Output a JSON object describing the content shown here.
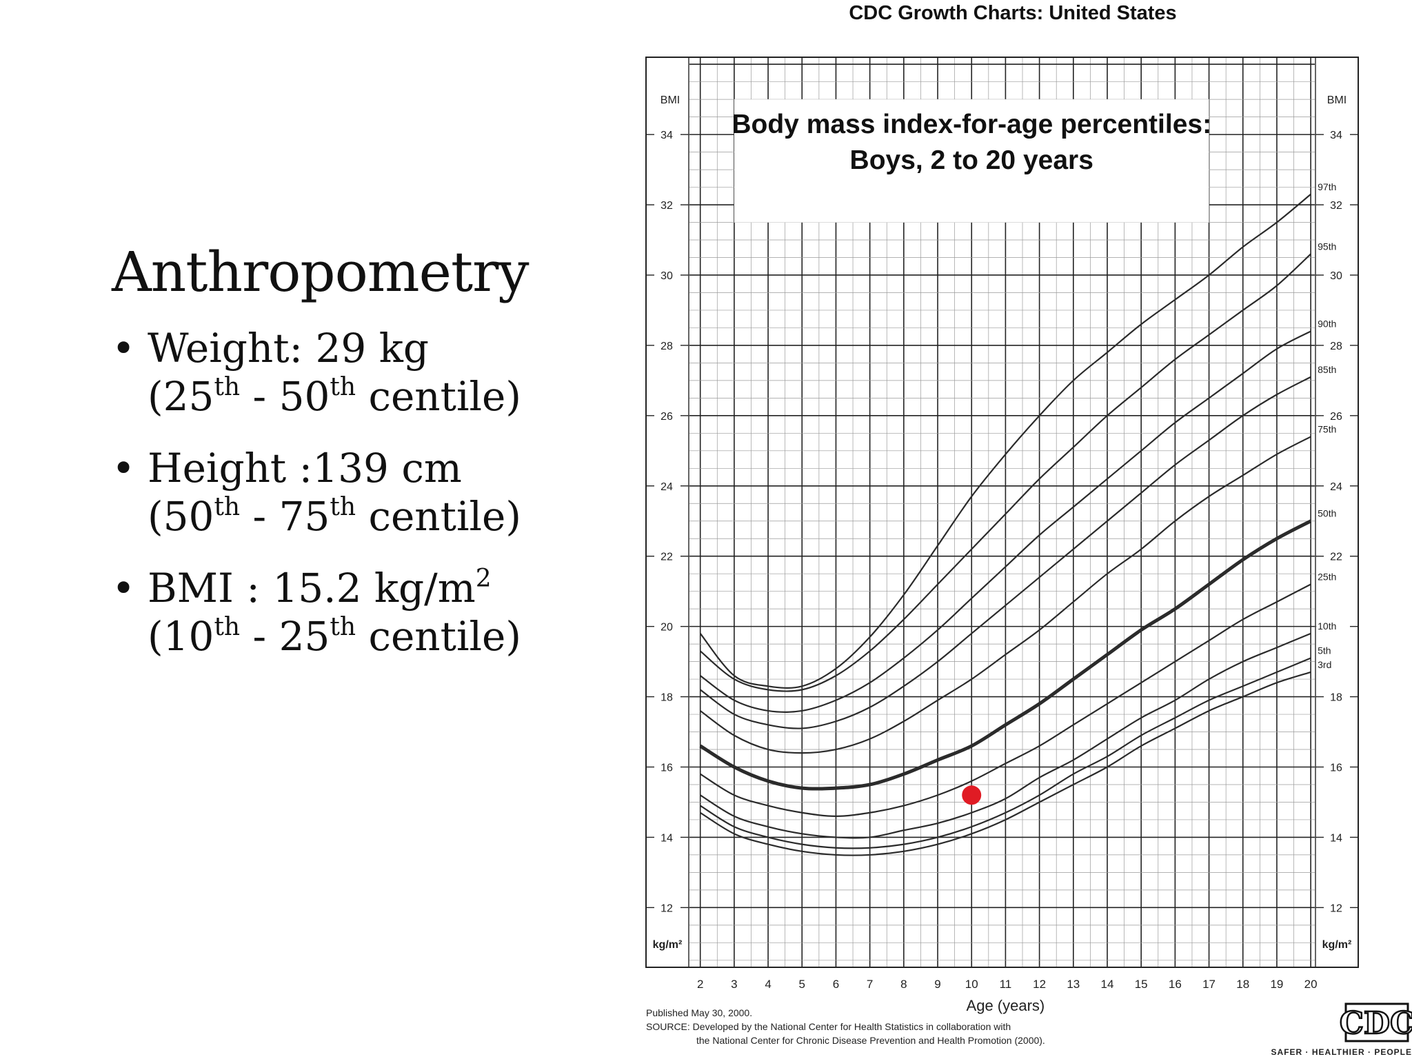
{
  "slide": {
    "title": "Anthropometry",
    "bullets": [
      {
        "line1": "Weight: 29 kg",
        "line2": [
          {
            "t": "(25"
          },
          {
            "sup": "th"
          },
          {
            "t": " - 50"
          },
          {
            "sup": "th"
          },
          {
            "t": " centile)"
          }
        ]
      },
      {
        "line1": "Height :139 cm",
        "line2": [
          {
            "t": "(50"
          },
          {
            "sup": "th"
          },
          {
            "t": " - 75"
          },
          {
            "sup": "th"
          },
          {
            "t": " centile)"
          }
        ]
      },
      {
        "line1_parts": [
          {
            "t": "BMI  : 15.2 kg/m"
          },
          {
            "sup": "2"
          }
        ],
        "line2": [
          {
            "t": "(10"
          },
          {
            "sup": "th"
          },
          {
            "t": " - 25"
          },
          {
            "sup": "th"
          },
          {
            "t": " centile)"
          }
        ]
      }
    ]
  },
  "chart_data": {
    "type": "line",
    "header": "CDC Growth Charts: United States",
    "title": "Body mass index-for-age percentiles:",
    "subtitle": "Boys, 2 to 20 years",
    "xlabel": "Age (years)",
    "ylabel_top": "BMI",
    "ylabel_bottom": "kg/m²",
    "xlim": [
      0.4,
      21.4
    ],
    "ylim": [
      10.3,
      36.2
    ],
    "x_ticks": [
      2,
      3,
      4,
      5,
      6,
      7,
      8,
      9,
      10,
      11,
      12,
      13,
      14,
      15,
      16,
      17,
      18,
      19,
      20
    ],
    "y_ticks": [
      12,
      14,
      16,
      18,
      20,
      22,
      24,
      26,
      28,
      30,
      32,
      34
    ],
    "grid": true,
    "x": [
      2,
      3,
      4,
      5,
      6,
      7,
      8,
      9,
      10,
      11,
      12,
      13,
      14,
      15,
      16,
      17,
      18,
      19,
      20
    ],
    "series": [
      {
        "name": "3rd",
        "emphasis": false,
        "values": [
          14.7,
          14.1,
          13.8,
          13.6,
          13.5,
          13.5,
          13.6,
          13.8,
          14.1,
          14.5,
          15.0,
          15.5,
          16.0,
          16.6,
          17.1,
          17.6,
          18.0,
          18.4,
          18.7
        ]
      },
      {
        "name": "5th",
        "emphasis": false,
        "values": [
          14.9,
          14.3,
          14.0,
          13.8,
          13.7,
          13.7,
          13.8,
          14.0,
          14.3,
          14.7,
          15.2,
          15.8,
          16.3,
          16.9,
          17.4,
          17.9,
          18.3,
          18.7,
          19.1
        ]
      },
      {
        "name": "10th",
        "emphasis": false,
        "values": [
          15.2,
          14.6,
          14.3,
          14.1,
          14.0,
          14.0,
          14.2,
          14.4,
          14.7,
          15.1,
          15.7,
          16.2,
          16.8,
          17.4,
          17.9,
          18.5,
          19.0,
          19.4,
          19.8
        ]
      },
      {
        "name": "25th",
        "emphasis": false,
        "values": [
          15.8,
          15.2,
          14.9,
          14.7,
          14.6,
          14.7,
          14.9,
          15.2,
          15.6,
          16.1,
          16.6,
          17.2,
          17.8,
          18.4,
          19.0,
          19.6,
          20.2,
          20.7,
          21.2
        ]
      },
      {
        "name": "50th",
        "emphasis": true,
        "values": [
          16.6,
          16.0,
          15.6,
          15.4,
          15.4,
          15.5,
          15.8,
          16.2,
          16.6,
          17.2,
          17.8,
          18.5,
          19.2,
          19.9,
          20.5,
          21.2,
          21.9,
          22.5,
          23.0
        ]
      },
      {
        "name": "75th",
        "emphasis": false,
        "values": [
          17.6,
          16.9,
          16.5,
          16.4,
          16.5,
          16.8,
          17.3,
          17.9,
          18.5,
          19.2,
          19.9,
          20.7,
          21.5,
          22.2,
          23.0,
          23.7,
          24.3,
          24.9,
          25.4
        ]
      },
      {
        "name": "85th",
        "emphasis": false,
        "values": [
          18.2,
          17.5,
          17.2,
          17.1,
          17.3,
          17.7,
          18.3,
          19.0,
          19.8,
          20.6,
          21.4,
          22.2,
          23.0,
          23.8,
          24.6,
          25.3,
          26.0,
          26.6,
          27.1
        ]
      },
      {
        "name": "90th",
        "emphasis": false,
        "values": [
          18.6,
          17.9,
          17.6,
          17.6,
          17.9,
          18.4,
          19.1,
          19.9,
          20.8,
          21.7,
          22.6,
          23.4,
          24.2,
          25.0,
          25.8,
          26.5,
          27.2,
          27.9,
          28.4
        ]
      },
      {
        "name": "95th",
        "emphasis": false,
        "values": [
          19.3,
          18.5,
          18.2,
          18.2,
          18.6,
          19.3,
          20.2,
          21.2,
          22.2,
          23.2,
          24.2,
          25.1,
          26.0,
          26.8,
          27.6,
          28.3,
          29.0,
          29.7,
          30.6
        ]
      },
      {
        "name": "97th",
        "emphasis": false,
        "values": [
          19.8,
          18.6,
          18.3,
          18.3,
          18.8,
          19.7,
          20.9,
          22.3,
          23.7,
          24.9,
          26.0,
          27.0,
          27.8,
          28.6,
          29.3,
          30.0,
          30.8,
          31.5,
          32.3
        ]
      }
    ],
    "marker": {
      "x": 10,
      "y": 15.2,
      "color": "#e01b24"
    },
    "footer": {
      "published": "Published May 30, 2000.",
      "source_1": "SOURCE: Developed by the National Center for Health Statistics in collaboration with",
      "source_2": "the National Center for Chronic Disease Prevention and Health Promotion (2000).",
      "tagline": "SAFER · HEALTHIER · PEOPLE",
      "logo": "CDC"
    },
    "colors": {
      "line": "#2b2b2b",
      "grid_major": "#222222",
      "grid_minor": "#9a9a9a"
    }
  }
}
